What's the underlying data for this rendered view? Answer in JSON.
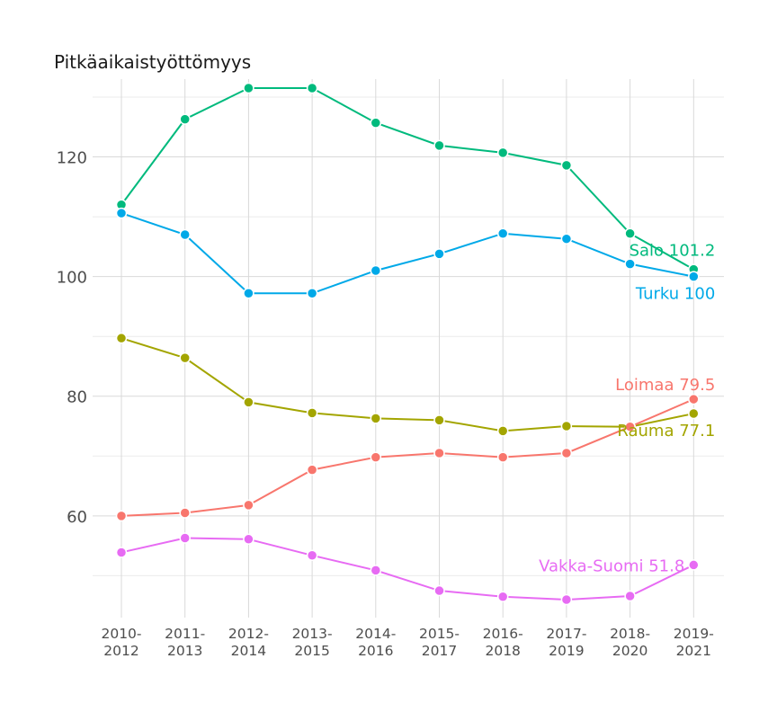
{
  "chart_data": {
    "type": "line",
    "title": "Pitkäaikaistyöttömyys",
    "xlabel": "",
    "ylabel": "",
    "categories": [
      [
        "2010-",
        "2012"
      ],
      [
        "2011-",
        "2013"
      ],
      [
        "2012-",
        "2014"
      ],
      [
        "2013-",
        "2015"
      ],
      [
        "2014-",
        "2016"
      ],
      [
        "2015-",
        "2017"
      ],
      [
        "2016-",
        "2018"
      ],
      [
        "2017-",
        "2019"
      ],
      [
        "2018-",
        "2020"
      ],
      [
        "2019-",
        "2021"
      ]
    ],
    "yticks": [
      60,
      80,
      100,
      120
    ],
    "ylim": [
      43,
      133
    ],
    "grid": true,
    "legend": "none",
    "series": [
      {
        "name": "Salo",
        "color": "#00BA7D",
        "values": [
          112,
          126.3,
          131.5,
          131.5,
          125.7,
          121.9,
          120.7,
          118.6,
          107.2,
          101.2
        ],
        "end_label": "Salo 101.2"
      },
      {
        "name": "Turku",
        "color": "#00A9E8",
        "values": [
          110.6,
          107,
          97.2,
          97.2,
          101,
          103.8,
          107.2,
          106.3,
          102.1,
          100
        ],
        "end_label": "Turku 100"
      },
      {
        "name": "Rauma",
        "color": "#A3A500",
        "values": [
          89.7,
          86.4,
          79,
          77.2,
          76.3,
          76,
          74.2,
          75,
          74.9,
          77.1
        ],
        "end_label": "Rauma 77.1"
      },
      {
        "name": "Loimaa",
        "color": "#F8766D",
        "values": [
          60,
          60.5,
          61.8,
          67.7,
          69.8,
          70.5,
          69.8,
          70.5,
          74.9,
          79.5
        ],
        "end_label": "Loimaa 79.5"
      },
      {
        "name": "Vakka-Suomi",
        "color": "#E76BF3",
        "values": [
          53.9,
          56.3,
          56.1,
          53.4,
          50.9,
          47.5,
          46.5,
          46,
          46.6,
          51.8
        ],
        "end_label": "Vakka-Suomi 51.8"
      }
    ]
  }
}
